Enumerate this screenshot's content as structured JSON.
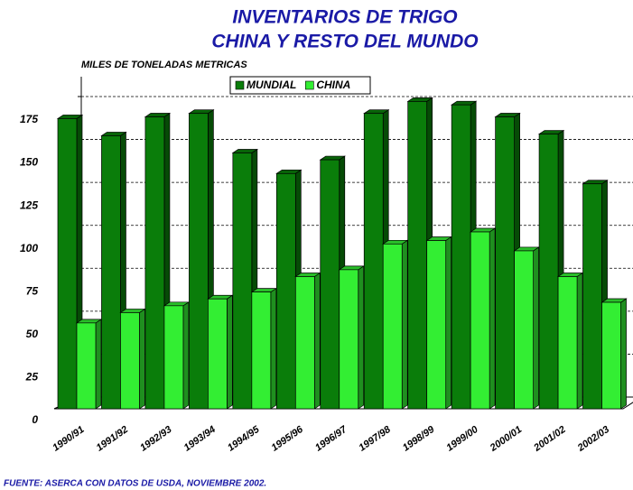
{
  "chart_data": {
    "type": "bar3d",
    "title": [
      "INVENTARIOS DE TRIGO",
      "CHINA Y RESTO DEL MUNDO"
    ],
    "y_label": "MILES DE TONELADAS METRICAS",
    "source": "FUENTE: ASERCA CON DATOS DE USDA, NOVIEMBRE 2002.",
    "categories": [
      "1990/91",
      "1991/92",
      "1992/93",
      "1993/94",
      "1994/95",
      "1995/96",
      "1996/97",
      "1997/98",
      "1998/99",
      "1999/00",
      "2000/01",
      "2001/02",
      "2002/03"
    ],
    "series": [
      {
        "name": "MUNDIAL",
        "color": "#0a7d0a",
        "values": [
          169,
          159,
          170,
          172,
          149,
          137,
          145,
          172,
          179,
          177,
          170,
          160,
          131
        ]
      },
      {
        "name": "CHINA",
        "color": "#33ee33",
        "values": [
          50,
          56,
          60,
          64,
          68,
          77,
          81,
          96,
          98,
          103,
          92,
          77,
          62
        ]
      }
    ],
    "ylim": [
      0,
      175
    ],
    "yticks": [
      0,
      25,
      50,
      75,
      100,
      125,
      150,
      175
    ],
    "grid": true,
    "legend": "top"
  }
}
